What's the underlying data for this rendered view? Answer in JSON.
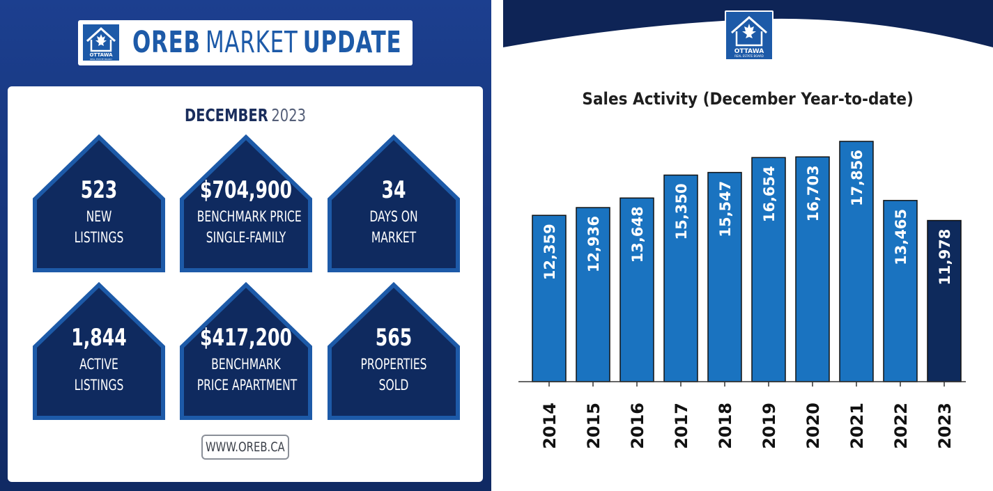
{
  "left": {
    "logo_text": "OTTAWA",
    "logo_subtext": "REAL ESTATE BOARD",
    "title_part1": "OREB",
    "title_part2": "MARKET",
    "title_part3": "UPDATE",
    "month": "DECEMBER",
    "year": "2023",
    "stats": [
      {
        "value": "523",
        "line1": "NEW",
        "line2": "LISTINGS"
      },
      {
        "value": "$704,900",
        "line1": "BENCHMARK PRICE",
        "line2": "SINGLE-FAMILY"
      },
      {
        "value": "34",
        "line1": "DAYS ON",
        "line2": "MARKET"
      },
      {
        "value": "1,844",
        "line1": "ACTIVE",
        "line2": "LISTINGS"
      },
      {
        "value": "$417,200",
        "line1": "BENCHMARK",
        "line2": "PRICE APARTMENT"
      },
      {
        "value": "565",
        "line1": "PROPERTIES",
        "line2": "SOLD"
      }
    ],
    "url": "WWW.OREB.CA",
    "colors": {
      "panel": "#163477",
      "house_fill": "#0f2a5f",
      "house_border": "#1d5aa8",
      "accent": "#1d5aa8"
    }
  },
  "right": {
    "logo_text": "OTTAWA",
    "logo_subtext": "REAL ESTATE BOARD"
  },
  "chart_data": {
    "type": "bar",
    "title": "Sales Activity (December Year-to-date)",
    "categories": [
      "2014",
      "2015",
      "2016",
      "2017",
      "2018",
      "2019",
      "2020",
      "2021",
      "2022",
      "2023"
    ],
    "values": [
      12359,
      12936,
      13648,
      15350,
      15547,
      16654,
      16703,
      17856,
      13465,
      11978
    ],
    "value_labels": [
      "12,359",
      "12,936",
      "13,648",
      "15,350",
      "15,547",
      "16,654",
      "16,703",
      "17,856",
      "13,465",
      "11,978"
    ],
    "xlabel": "",
    "ylabel": "",
    "grid": false,
    "legend": "none",
    "colors": {
      "bar": "#1a73c0",
      "highlight": "#0e2a5c",
      "band": "#0e2456"
    }
  }
}
